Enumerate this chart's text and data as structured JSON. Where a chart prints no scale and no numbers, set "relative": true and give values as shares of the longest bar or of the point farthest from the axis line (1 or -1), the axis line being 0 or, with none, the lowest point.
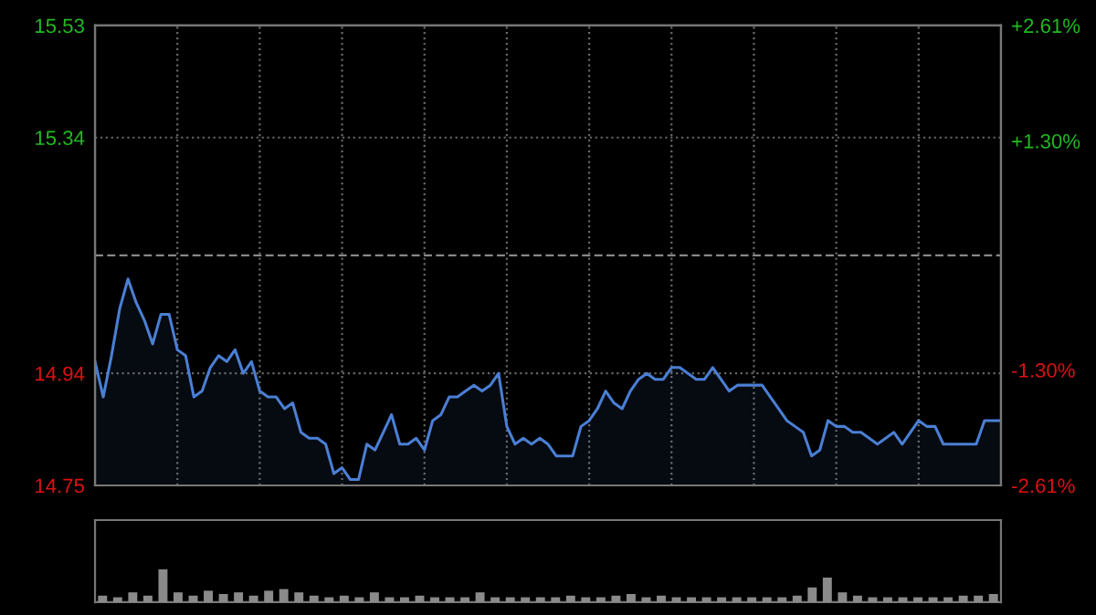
{
  "chart_data": [
    {
      "type": "area",
      "categories": [
        null,
        null,
        null,
        null,
        null,
        null,
        null,
        null,
        null,
        null,
        null,
        null,
        null,
        null,
        null,
        null,
        null,
        null,
        null,
        null,
        null,
        null,
        null,
        null,
        null,
        null,
        null,
        null,
        null,
        null,
        null,
        null,
        null,
        null,
        null,
        null,
        null,
        null,
        null,
        null,
        null,
        null,
        null,
        null,
        null,
        null,
        null,
        null,
        null,
        null,
        null,
        null,
        null,
        null,
        null,
        null,
        null,
        null,
        null,
        null,
        null,
        null,
        null,
        null,
        null,
        null,
        null,
        null,
        null,
        null,
        null,
        null,
        null,
        null,
        null,
        null,
        null,
        null,
        null,
        null,
        null,
        null,
        null,
        null,
        null,
        null,
        null,
        null,
        null,
        null,
        null,
        null,
        null,
        null,
        null,
        null,
        null,
        null,
        null,
        null,
        null,
        null,
        null,
        null,
        null,
        null,
        null,
        null,
        null,
        null,
        null
      ],
      "ylim": [
        14.75,
        15.53
      ],
      "yticks": [
        14.75,
        14.94,
        15.34,
        15.53
      ],
      "y2lim": [
        -2.61,
        2.61
      ],
      "y2ticks": [
        {
          "value": -2.61,
          "label": "-2.61%"
        },
        {
          "value": -1.3,
          "label": "-1.30%"
        },
        {
          "value": 1.3,
          "label": "+1.30%"
        },
        {
          "value": 2.61,
          "label": "+2.61%"
        }
      ],
      "tick_labels": "y",
      "grid": true,
      "ref_lines": [
        {
          "axis": "y",
          "value": 15.14,
          "label": null,
          "color": "#888888",
          "line_style": "dashed"
        }
      ],
      "series": [
        {
          "color": "#4a7fd4",
          "values": [
            14.96,
            14.9,
            14.97,
            15.05,
            15.1,
            15.06,
            15.03,
            14.99,
            15.04,
            15.04,
            14.98,
            14.97,
            14.9,
            14.91,
            14.95,
            14.97,
            14.96,
            14.98,
            14.94,
            14.96,
            14.91,
            14.9,
            14.9,
            14.88,
            14.89,
            14.84,
            14.83,
            14.83,
            14.82,
            14.77,
            14.78,
            14.76,
            14.76,
            14.82,
            14.81,
            14.84,
            14.87,
            14.82,
            14.82,
            14.83,
            14.81,
            14.86,
            14.87,
            14.9,
            14.9,
            14.91,
            14.92,
            14.91,
            14.92,
            14.94,
            14.85,
            14.82,
            14.83,
            14.82,
            14.83,
            14.82,
            14.8,
            14.8,
            14.8,
            14.85,
            14.86,
            14.88,
            14.91,
            14.89,
            14.88,
            14.91,
            14.93,
            14.94,
            14.93,
            14.93,
            14.95,
            14.95,
            14.94,
            14.93,
            14.93,
            14.95,
            14.93,
            14.91,
            14.92,
            14.92,
            14.92,
            14.92,
            14.9,
            14.88,
            14.86,
            14.85,
            14.84,
            14.8,
            14.81,
            14.86,
            14.85,
            14.85,
            14.84,
            14.84,
            14.83,
            14.82,
            14.83,
            14.84,
            14.82,
            14.84,
            14.86,
            14.85,
            14.85,
            14.82,
            14.82,
            14.82,
            14.82,
            14.82,
            14.86,
            14.86,
            14.86
          ]
        }
      ]
    },
    {
      "type": "bar",
      "relative": true,
      "tick_labels": false,
      "categories": [
        null,
        null,
        null,
        null,
        null,
        null,
        null,
        null,
        null,
        null,
        null,
        null,
        null,
        null,
        null,
        null,
        null,
        null,
        null,
        null,
        null,
        null,
        null,
        null,
        null,
        null,
        null,
        null,
        null,
        null,
        null,
        null,
        null,
        null,
        null,
        null,
        null,
        null,
        null,
        null,
        null,
        null,
        null,
        null,
        null,
        null,
        null,
        null,
        null,
        null,
        null,
        null,
        null,
        null,
        null,
        null,
        null,
        null,
        null,
        null
      ],
      "series": [
        {
          "color": "#8a8a8a",
          "values": [
            0.2,
            0.15,
            0.3,
            0.2,
            1.0,
            0.3,
            0.2,
            0.35,
            0.25,
            0.3,
            0.2,
            0.35,
            0.4,
            0.3,
            0.2,
            0.15,
            0.2,
            0.15,
            0.3,
            0.15,
            0.15,
            0.2,
            0.15,
            0.15,
            0.15,
            0.3,
            0.15,
            0.15,
            0.15,
            0.15,
            0.15,
            0.2,
            0.15,
            0.15,
            0.2,
            0.25,
            0.15,
            0.2,
            0.15,
            0.15,
            0.15,
            0.15,
            0.15,
            0.15,
            0.15,
            0.15,
            0.2,
            0.45,
            0.75,
            0.3,
            0.2,
            0.15,
            0.15,
            0.15,
            0.15,
            0.15,
            0.15,
            0.2,
            0.2,
            0.25
          ]
        }
      ]
    }
  ]
}
